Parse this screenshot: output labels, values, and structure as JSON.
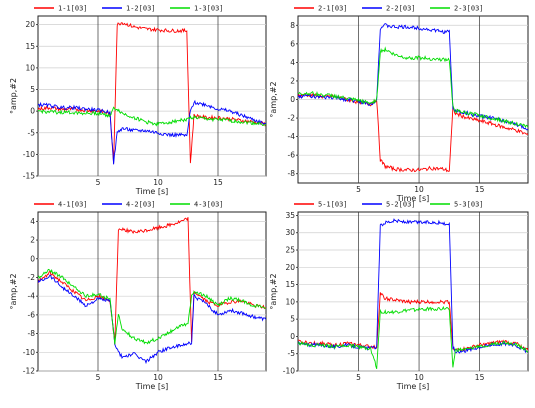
{
  "chart_data": [
    {
      "type": "line",
      "x": [
        0,
        1,
        2,
        3,
        4,
        5,
        6,
        6.3,
        6.6,
        7,
        8,
        9,
        10,
        11,
        12,
        12.4,
        12.7,
        13,
        14,
        15,
        16,
        17,
        18,
        19
      ],
      "series": [
        {
          "name": "1-1[03]",
          "color": "#ff0000",
          "values": [
            0.5,
            0.8,
            0.4,
            0.5,
            0.2,
            0,
            -0.5,
            -12,
            20,
            20.5,
            19.5,
            19,
            18.8,
            18.6,
            18.6,
            18.6,
            -12,
            -1,
            -1.5,
            -1.5,
            -1.8,
            -2.2,
            -2.5,
            -3
          ]
        },
        {
          "name": "1-2[03]",
          "color": "#0000ff",
          "values": [
            1.5,
            1.3,
            0.8,
            0.8,
            0.5,
            0.2,
            -0.3,
            -12,
            -5,
            -4,
            -4.5,
            -4.5,
            -5,
            -5.5,
            -5.5,
            -5.8,
            0,
            2,
            1.5,
            0.5,
            0,
            -1,
            -2,
            -3
          ]
        },
        {
          "name": "1-3[03]",
          "color": "#00dd00",
          "values": [
            0,
            -0.2,
            -0.3,
            -0.3,
            -0.5,
            -0.5,
            -1,
            0.5,
            0.5,
            -0.5,
            -1.5,
            -2.5,
            -3,
            -2.5,
            -2,
            -2,
            -1.5,
            -1.5,
            -1.8,
            -2,
            -2.2,
            -2.5,
            -2.8,
            -3
          ]
        }
      ],
      "xlabel": "Time  [s]",
      "ylabel": "°amp,#2",
      "xlim": [
        0,
        19
      ],
      "ylim": [
        -15,
        22
      ],
      "xticks": [
        5,
        10,
        15
      ],
      "yticks": [
        -15,
        -10,
        -5,
        0,
        5,
        10,
        15,
        20
      ],
      "grid": true,
      "legend_placement": "top"
    },
    {
      "type": "line",
      "x": [
        0,
        1,
        2,
        3,
        4,
        5,
        6,
        6.5,
        6.8,
        7.2,
        8,
        9,
        10,
        11,
        12,
        12.5,
        12.8,
        13,
        14,
        15,
        16,
        17,
        18,
        19
      ],
      "series": [
        {
          "name": "2-1[03]",
          "color": "#ff0000",
          "values": [
            0.4,
            0.5,
            0.3,
            0.3,
            0,
            -0.3,
            -0.5,
            0,
            -6.5,
            -7.2,
            -7.5,
            -7.6,
            -7.6,
            -7.4,
            -7.5,
            -7.7,
            -1,
            -1.5,
            -2,
            -2.3,
            -2.6,
            -3,
            -3.3,
            -3.8
          ]
        },
        {
          "name": "2-2[03]",
          "color": "#0000ff",
          "values": [
            0.3,
            0.4,
            0.2,
            0.2,
            0,
            -0.2,
            -0.5,
            0,
            7.7,
            8,
            7.8,
            7.8,
            7.7,
            7.5,
            7.3,
            7.3,
            -1,
            -1.2,
            -1.5,
            -1.8,
            -2,
            -2.3,
            -2.7,
            -3.2
          ]
        },
        {
          "name": "2-3[03]",
          "color": "#00dd00",
          "values": [
            0.6,
            0.7,
            0.5,
            0.4,
            0.1,
            -0.1,
            -0.4,
            0,
            5.2,
            5.4,
            4.8,
            4.5,
            4.5,
            4.4,
            4.3,
            4.3,
            -0.8,
            -1.2,
            -1.5,
            -1.7,
            -2,
            -2.3,
            -2.6,
            -3
          ]
        }
      ],
      "xlabel": "Time  [s]",
      "ylabel": "°amp,#2",
      "xlim": [
        0,
        19
      ],
      "ylim": [
        -9,
        9
      ],
      "xticks": [
        5,
        10,
        15
      ],
      "yticks": [
        -8,
        -6,
        -4,
        -2,
        0,
        2,
        4,
        6,
        8
      ],
      "grid": true,
      "legend_placement": "top"
    },
    {
      "type": "line",
      "x": [
        0,
        1,
        2,
        3,
        4,
        5,
        6,
        6.4,
        6.7,
        7,
        8,
        9,
        10,
        11,
        12,
        12.5,
        12.8,
        13,
        14,
        15,
        16,
        17,
        18,
        19
      ],
      "series": [
        {
          "name": "4-1[03]",
          "color": "#ff0000",
          "values": [
            -2.5,
            -1.5,
            -2.5,
            -3.5,
            -4.5,
            -4,
            -4.5,
            -9,
            3,
            3.2,
            2.8,
            3,
            3.3,
            3.6,
            4,
            4.3,
            -9,
            -3.5,
            -4.5,
            -5,
            -4.6,
            -4.5,
            -5,
            -5.2
          ]
        },
        {
          "name": "4-2[03]",
          "color": "#0000ff",
          "values": [
            -2.5,
            -1.8,
            -3,
            -4,
            -5,
            -4.3,
            -4.5,
            -9,
            -10,
            -10.5,
            -10.2,
            -11,
            -10,
            -9.5,
            -9.3,
            -9,
            -9,
            -4,
            -4.8,
            -6,
            -5.5,
            -5.8,
            -6.2,
            -6.5
          ]
        },
        {
          "name": "4-3[03]",
          "color": "#00dd00",
          "values": [
            -2,
            -1.2,
            -2,
            -3,
            -4,
            -3.8,
            -4.3,
            -9,
            -6,
            -7.5,
            -8.5,
            -9,
            -8.5,
            -7.8,
            -7,
            -7,
            -4,
            -3.5,
            -4,
            -5,
            -4.2,
            -4.5,
            -5,
            -5.3
          ]
        }
      ],
      "xlabel": "Time  [s]",
      "ylabel": "°amp,#2",
      "xlim": [
        0,
        19
      ],
      "ylim": [
        -12,
        5
      ],
      "xticks": [
        5,
        10,
        15
      ],
      "yticks": [
        -12,
        -10,
        -8,
        -6,
        -4,
        -2,
        0,
        2,
        4
      ],
      "grid": true,
      "legend_placement": "top"
    },
    {
      "type": "line",
      "x": [
        0,
        1,
        2,
        3,
        4,
        5,
        6,
        6.5,
        6.8,
        7.2,
        8,
        9,
        10,
        11,
        12,
        12.5,
        12.8,
        13,
        14,
        15,
        16,
        17,
        18,
        19
      ],
      "series": [
        {
          "name": "5-1[03]",
          "color": "#ff0000",
          "values": [
            -1.5,
            -2,
            -2,
            -2.5,
            -2,
            -2.5,
            -3,
            -3,
            12.5,
            11,
            10.5,
            10,
            10,
            10,
            10,
            10,
            -3,
            -4,
            -3.5,
            -2.5,
            -2,
            -1.5,
            -2,
            -4
          ]
        },
        {
          "name": "5-2[03]",
          "color": "#0000ff",
          "values": [
            -2,
            -2.5,
            -2.5,
            -3,
            -2.5,
            -3,
            -3.5,
            -3,
            32,
            33,
            33.5,
            33,
            33,
            33,
            32.8,
            32.5,
            -3,
            -4.5,
            -4,
            -3,
            -2.5,
            -2,
            -2.5,
            -4.5
          ]
        },
        {
          "name": "5-3[03]",
          "color": "#00dd00",
          "values": [
            -2,
            -2.5,
            -2.5,
            -3,
            -2.5,
            -3,
            -3.5,
            -9,
            7.2,
            7,
            7,
            7.5,
            7.8,
            8,
            8,
            8,
            -9,
            -4,
            -3.8,
            -2.8,
            -2.3,
            -1.8,
            -2.2,
            -4.2
          ]
        }
      ],
      "xlabel": "Time  [s]",
      "ylabel": "°amp,#2",
      "xlim": [
        0,
        19
      ],
      "ylim": [
        -10,
        36
      ],
      "xticks": [
        5,
        10,
        15
      ],
      "yticks": [
        -10,
        -5,
        0,
        5,
        10,
        15,
        20,
        25,
        30,
        35
      ],
      "grid": true,
      "legend_placement": "top"
    }
  ]
}
